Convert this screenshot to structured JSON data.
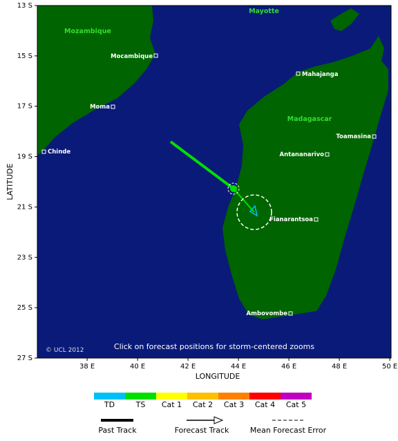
{
  "map": {
    "y_axis_title": "LATITUDE",
    "x_axis_title": "LONGITUDE",
    "lat_ticks": [
      "13 S",
      "15 S",
      "17 S",
      "19 S",
      "21 S",
      "23 S",
      "25 S",
      "27 S"
    ],
    "lon_ticks": [
      "38 E",
      "40 E",
      "42 E",
      "44 E",
      "46 E",
      "48 E",
      "50 E"
    ],
    "regions": [
      "Mozambique",
      "Mayotte",
      "Madagascar"
    ],
    "cities": [
      "Mocambique",
      "Mahajanga",
      "Moma",
      "Toamasina",
      "Chinde",
      "Antananarivo",
      "Fianarantsoa",
      "Ambovombe"
    ],
    "copyright": "© UCL 2012",
    "note": "Click on forecast positions for storm-centered zooms"
  },
  "legend": {
    "intensity": [
      {
        "label": "TD",
        "color": "#00c0f8"
      },
      {
        "label": "TS",
        "color": "#00e000"
      },
      {
        "label": "Cat 1",
        "color": "#ffff00"
      },
      {
        "label": "Cat 2",
        "color": "#ffc000"
      },
      {
        "label": "Cat 3",
        "color": "#ff8000"
      },
      {
        "label": "Cat 4",
        "color": "#ff0000"
      },
      {
        "label": "Cat 5",
        "color": "#c000c0"
      }
    ],
    "tracks": [
      "Past Track",
      "Forecast Track",
      "Mean Forecast Error"
    ]
  }
}
